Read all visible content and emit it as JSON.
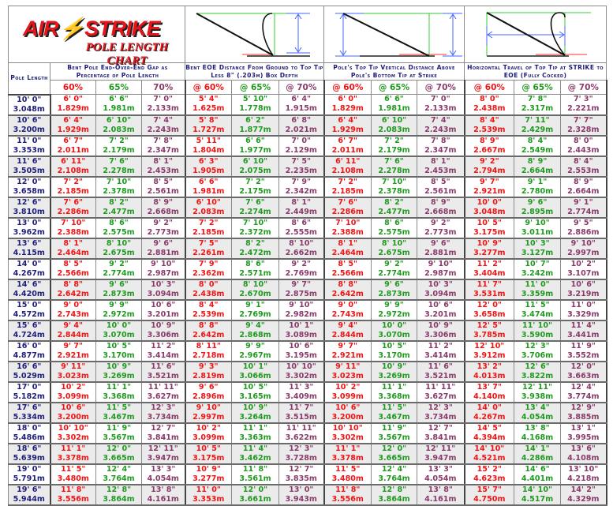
{
  "logo": {
    "brand": "AIR⚡STRIKE",
    "subtitle": "POLE LENGTH CHART"
  },
  "headers": {
    "pole_length": "Pole Length",
    "groups": [
      "Bent Pole End-Over-End Gap as Percentage of Pole Length",
      "Bent EOE Distance From Ground to Top Tip Less 8\" (.203m) Box Depth",
      "Pole's Top Tip Vertical Distance Above Pole's Bottom Tip at Strike",
      "Horizontal Travel of Top Tip at STRIKE to EOE (Fully Cocked)"
    ],
    "percentages": [
      [
        "60%",
        "65%",
        "70%"
      ],
      [
        "@ 60%",
        "@ 65%",
        "@ 70%"
      ],
      [
        "@ 60%",
        "@ 65%",
        "@ 70%"
      ],
      [
        "@ 60%",
        "@ 65%",
        "@ 70%"
      ]
    ]
  },
  "colors": {
    "pct60": "#f01414",
    "pct65": "#1f9a1f",
    "pct70": "#8a3a6a",
    "length": "#1d1d7a"
  },
  "rows": [
    {
      "length": [
        "10' 0\"",
        "3.048m"
      ],
      "cells": [
        [
          "6' 0\"",
          "1.829m"
        ],
        [
          "6' 6\"",
          "1.981m"
        ],
        [
          "7' 0\"",
          "2.133m"
        ],
        [
          "5' 4\"",
          "1.625m"
        ],
        [
          "5' 10\"",
          "1.778m"
        ],
        [
          "6' 4\"",
          "1.915m"
        ],
        [
          "6' 0\"",
          "1.829m"
        ],
        [
          "6' 6\"",
          "1.981m"
        ],
        [
          "7' 0\"",
          "2.133m"
        ],
        [
          "8' 0\"",
          "2.438m"
        ],
        [
          "7' 8\"",
          "2.317m"
        ],
        [
          "7' 3\"",
          "2.221m"
        ]
      ]
    },
    {
      "length": [
        "10' 6\"",
        "3.200m"
      ],
      "cells": [
        [
          "6' 4\"",
          "1.929m"
        ],
        [
          "6' 10\"",
          "2.083m"
        ],
        [
          "7' 4\"",
          "2.243m"
        ],
        [
          "5' 8\"",
          "1.727m"
        ],
        [
          "6' 2\"",
          "1.877m"
        ],
        [
          "6' 8\"",
          "2.021m"
        ],
        [
          "6' 4\"",
          "1.929m"
        ],
        [
          "6' 10\"",
          "2.083m"
        ],
        [
          "7' 4\"",
          "2.243m"
        ],
        [
          "8' 4\"",
          "2.539m"
        ],
        [
          "7' 11\"",
          "2.429m"
        ],
        [
          "7' 7\"",
          "2.328m"
        ]
      ]
    },
    {
      "length": [
        "11' 0\"",
        "3.353m"
      ],
      "cells": [
        [
          "6' 7\"",
          "2.011m"
        ],
        [
          "7' 2\"",
          "2.179m"
        ],
        [
          "7' 8\"",
          "2.347m"
        ],
        [
          "5' 11\"",
          "1.804m"
        ],
        [
          "6' 6\"",
          "1.977m"
        ],
        [
          "7' 0\"",
          "2.129m"
        ],
        [
          "6' 7\"",
          "2.011m"
        ],
        [
          "7' 2\"",
          "2.179m"
        ],
        [
          "7' 8\"",
          "2.347m"
        ],
        [
          "8' 9\"",
          "2.667m"
        ],
        [
          "8' 4\"",
          "2.549m"
        ],
        [
          "8' 0\"",
          "2.443m"
        ]
      ]
    },
    {
      "length": [
        "11' 6\"",
        "3.505m"
      ],
      "cells": [
        [
          "6' 11\"",
          "2.108m"
        ],
        [
          "7' 6\"",
          "2.278m"
        ],
        [
          "8' 1\"",
          "2.453m"
        ],
        [
          "6' 3\"",
          "1.905m"
        ],
        [
          "6' 10\"",
          "2.075m"
        ],
        [
          "7' 5\"",
          "2.235m"
        ],
        [
          "6' 11\"",
          "2.108m"
        ],
        [
          "7' 6\"",
          "2.278m"
        ],
        [
          "8' 1\"",
          "2.453m"
        ],
        [
          "9' 2\"",
          "2.794m"
        ],
        [
          "8' 9\"",
          "2.664m"
        ],
        [
          "8' 4\"",
          "2.553m"
        ]
      ]
    },
    {
      "length": [
        "12' 0\"",
        "3.658m"
      ],
      "cells": [
        [
          "7' 2\"",
          "2.185m"
        ],
        [
          "7' 10\"",
          "2.378m"
        ],
        [
          "8' 5\"",
          "2.561m"
        ],
        [
          "6' 6\"",
          "1.981m"
        ],
        [
          "7' 2\"",
          "2.175m"
        ],
        [
          "7' 9\"",
          "2.342m"
        ],
        [
          "7' 2\"",
          "2.185m"
        ],
        [
          "7' 10\"",
          "2.378m"
        ],
        [
          "8' 5\"",
          "2.561m"
        ],
        [
          "9' 7\"",
          "2.921m"
        ],
        [
          "9' 1\"",
          "2.780m"
        ],
        [
          "8' 9\"",
          "2.664m"
        ]
      ]
    },
    {
      "length": [
        "12' 6\"",
        "3.810m"
      ],
      "cells": [
        [
          "7' 6\"",
          "2.286m"
        ],
        [
          "8' 2\"",
          "2.477m"
        ],
        [
          "8' 9\"",
          "2.668m"
        ],
        [
          "6' 10\"",
          "2.083m"
        ],
        [
          "7' 6\"",
          "2.274m"
        ],
        [
          "8' 1\"",
          "2.449m"
        ],
        [
          "7' 6\"",
          "2.286m"
        ],
        [
          "8' 2\"",
          "2.477m"
        ],
        [
          "8' 9\"",
          "2.668m"
        ],
        [
          "10' 0\"",
          "3.048m"
        ],
        [
          "9' 6\"",
          "2.895m"
        ],
        [
          "9' 1\"",
          "2.774m"
        ]
      ]
    },
    {
      "length": [
        "13' 0\"",
        "3.962m"
      ],
      "cells": [
        [
          "7' 10\"",
          "2.388m"
        ],
        [
          "8' 6\"",
          "2.575m"
        ],
        [
          "9' 2\"",
          "2.773m"
        ],
        [
          "7' 2\"",
          "2.185m"
        ],
        [
          "7' 10\"",
          "2.372m"
        ],
        [
          "8' 6\"",
          "2.555m"
        ],
        [
          "7' 10\"",
          "2.388m"
        ],
        [
          "8' 6\"",
          "2.575m"
        ],
        [
          "9' 2\"",
          "2.773m"
        ],
        [
          "10' 5\"",
          "3.175m"
        ],
        [
          "9' 10\"",
          "3.011m"
        ],
        [
          "9' 5\"",
          "2.886m"
        ]
      ]
    },
    {
      "length": [
        "13' 6\"",
        "4.115m"
      ],
      "cells": [
        [
          "8' 1\"",
          "2.464m"
        ],
        [
          "8' 10\"",
          "2.675m"
        ],
        [
          "9' 6\"",
          "2.881m"
        ],
        [
          "7' 5\"",
          "2.261m"
        ],
        [
          "8' 2\"",
          "2.472m"
        ],
        [
          "8' 10\"",
          "2.662m"
        ],
        [
          "8' 1\"",
          "2.464m"
        ],
        [
          "8' 10\"",
          "2.675m"
        ],
        [
          "9' 6\"",
          "2.881m"
        ],
        [
          "10' 9\"",
          "3.277m"
        ],
        [
          "10' 3\"",
          "3.127m"
        ],
        [
          "9' 10\"",
          "2.997m"
        ]
      ]
    },
    {
      "length": [
        "14' 0\"",
        "4.267m"
      ],
      "cells": [
        [
          "8' 5\"",
          "2.566m"
        ],
        [
          "9' 2\"",
          "2.774m"
        ],
        [
          "9' 10\"",
          "2.987m"
        ],
        [
          "7' 9\"",
          "2.362m"
        ],
        [
          "8' 6\"",
          "2.571m"
        ],
        [
          "9' 2\"",
          "2.769m"
        ],
        [
          "8' 5\"",
          "2.566m"
        ],
        [
          "9' 2\"",
          "2.774m"
        ],
        [
          "9' 10\"",
          "2.987m"
        ],
        [
          "11' 2\"",
          "3.404m"
        ],
        [
          "10' 7\"",
          "3.242m"
        ],
        [
          "10' 2\"",
          "3.107m"
        ]
      ]
    },
    {
      "length": [
        "14' 6\"",
        "4.420m"
      ],
      "cells": [
        [
          "8' 8\"",
          "2.642m"
        ],
        [
          "9' 6\"",
          "2.873m"
        ],
        [
          "10' 3\"",
          "3.094m"
        ],
        [
          "8' 0\"",
          "2.438m"
        ],
        [
          "8' 10\"",
          "2.670m"
        ],
        [
          "9' 7\"",
          "2.875m"
        ],
        [
          "8' 8\"",
          "2.642m"
        ],
        [
          "9' 6\"",
          "2.873m"
        ],
        [
          "10' 3\"",
          "3.094m"
        ],
        [
          "11' 7\"",
          "3.531m"
        ],
        [
          "11' 0\"",
          "3.359m"
        ],
        [
          "10' 6\"",
          "3.219m"
        ]
      ]
    },
    {
      "length": [
        "15' 0\"",
        "4.572m"
      ],
      "cells": [
        [
          "9' 0\"",
          "2.743m"
        ],
        [
          "9' 9\"",
          "2.972m"
        ],
        [
          "10' 6\"",
          "3.201m"
        ],
        [
          "8' 4\"",
          "2.539m"
        ],
        [
          "9' 1\"",
          "2.769m"
        ],
        [
          "9' 10\"",
          "2.982m"
        ],
        [
          "9' 0\"",
          "2.743m"
        ],
        [
          "9' 9\"",
          "2.972m"
        ],
        [
          "10' 6\"",
          "3.201m"
        ],
        [
          "12' 0\"",
          "3.658m"
        ],
        [
          "11' 5\"",
          "3.474m"
        ],
        [
          "11' 0\"",
          "3.329m"
        ]
      ]
    },
    {
      "length": [
        "15' 6\"",
        "4.724m"
      ],
      "cells": [
        [
          "9' 4\"",
          "2.844m"
        ],
        [
          "10' 0\"",
          "3.070m"
        ],
        [
          "10' 9\"",
          "3.306m"
        ],
        [
          "8' 8\"",
          "2.642m"
        ],
        [
          "9' 4\"",
          "2.868m"
        ],
        [
          "10' 1\"",
          "3.089m"
        ],
        [
          "9' 4\"",
          "2.844m"
        ],
        [
          "10' 0\"",
          "3.070m"
        ],
        [
          "10' 9\"",
          "3.306m"
        ],
        [
          "12' 5\"",
          "3.785m"
        ],
        [
          "11' 10\"",
          "3.590m"
        ],
        [
          "11' 4\"",
          "3.441m"
        ]
      ]
    },
    {
      "length": [
        "16' 0\"",
        "4.877m"
      ],
      "cells": [
        [
          "9' 7\"",
          "2.921m"
        ],
        [
          "10' 5\"",
          "3.170m"
        ],
        [
          "11' 2\"",
          "3.414m"
        ],
        [
          "8' 11\"",
          "2.718m"
        ],
        [
          "9' 9\"",
          "2.967m"
        ],
        [
          "10' 6\"",
          "3.195m"
        ],
        [
          "9' 7\"",
          "2.921m"
        ],
        [
          "10' 5\"",
          "3.170m"
        ],
        [
          "11' 2\"",
          "3.414m"
        ],
        [
          "12' 10\"",
          "3.912m"
        ],
        [
          "12' 3\"",
          "3.706m"
        ],
        [
          "11' 9\"",
          "3.552m"
        ]
      ]
    },
    {
      "length": [
        "16' 6\"",
        "5.029m"
      ],
      "cells": [
        [
          "9' 11\"",
          "3.023m"
        ],
        [
          "10' 9\"",
          "3.269m"
        ],
        [
          "11' 6\"",
          "3.521m"
        ],
        [
          "9' 3\"",
          "2.819m"
        ],
        [
          "10' 1\"",
          "3.066m"
        ],
        [
          "10' 10\"",
          "3.302m"
        ],
        [
          "9' 11\"",
          "3.023m"
        ],
        [
          "10' 9\"",
          "3.269m"
        ],
        [
          "11' 6\"",
          "3.521m"
        ],
        [
          "13' 2\"",
          "4.013m"
        ],
        [
          "12' 6\"",
          "3.822m"
        ],
        [
          "12' 0\"",
          "3.663m"
        ]
      ]
    },
    {
      "length": [
        "17' 0\"",
        "5.182m"
      ],
      "cells": [
        [
          "10' 2\"",
          "3.099m"
        ],
        [
          "11' 1\"",
          "3.368m"
        ],
        [
          "11' 11\"",
          "3.627m"
        ],
        [
          "9' 6\"",
          "2.896m"
        ],
        [
          "10' 5\"",
          "3.165m"
        ],
        [
          "11' 3\"",
          "3.409m"
        ],
        [
          "10' 2\"",
          "3.099m"
        ],
        [
          "11' 1\"",
          "3.368m"
        ],
        [
          "11' 11\"",
          "3.627m"
        ],
        [
          "13' 7\"",
          "4.140m"
        ],
        [
          "12' 11\"",
          "3.938m"
        ],
        [
          "12' 4\"",
          "3.774m"
        ]
      ]
    },
    {
      "length": [
        "17' 6\"",
        "5.334m"
      ],
      "cells": [
        [
          "10' 6\"",
          "3.200m"
        ],
        [
          "11' 5\"",
          "3.467m"
        ],
        [
          "12' 3\"",
          "3.734m"
        ],
        [
          "9' 10\"",
          "2.997m"
        ],
        [
          "10' 9\"",
          "3.264m"
        ],
        [
          "11' 7\"",
          "3.515m"
        ],
        [
          "10' 6\"",
          "3.200m"
        ],
        [
          "11' 5\"",
          "3.467m"
        ],
        [
          "12' 3\"",
          "3.734m"
        ],
        [
          "14' 0\"",
          "4.267m"
        ],
        [
          "13' 4\"",
          "4.054m"
        ],
        [
          "12' 9\"",
          "3.885m"
        ]
      ]
    },
    {
      "length": [
        "18' 0\"",
        "5.486m"
      ],
      "cells": [
        [
          "10' 10\"",
          "3.302m"
        ],
        [
          "11' 9\"",
          "3.567m"
        ],
        [
          "12' 7\"",
          "3.841m"
        ],
        [
          "10' 2\"",
          "3.099m"
        ],
        [
          "11' 1\"",
          "3.363m"
        ],
        [
          "11' 11\"",
          "3.622m"
        ],
        [
          "10' 10\"",
          "3.302m"
        ],
        [
          "11' 9\"",
          "3.567m"
        ],
        [
          "12' 7\"",
          "3.841m"
        ],
        [
          "14' 5\"",
          "4.394m"
        ],
        [
          "13' 8\"",
          "4.168m"
        ],
        [
          "13' 1\"",
          "3.995m"
        ]
      ]
    },
    {
      "length": [
        "18' 6\"",
        "5.639m"
      ],
      "cells": [
        [
          "11' 1\"",
          "3.378m"
        ],
        [
          "12' 0\"",
          "3.665m"
        ],
        [
          "12' 11\"",
          "3.947m"
        ],
        [
          "10' 5\"",
          "3.175m"
        ],
        [
          "11' 4\"",
          "3.462m"
        ],
        [
          "12' 3\"",
          "3.728m"
        ],
        [
          "11' 1\"",
          "3.378m"
        ],
        [
          "12' 0\"",
          "3.665m"
        ],
        [
          "12' 11\"",
          "3.947m"
        ],
        [
          "14' 10\"",
          "4.521m"
        ],
        [
          "14' 1\"",
          "4.286m"
        ],
        [
          "13' 6\"",
          "4.108m"
        ]
      ]
    },
    {
      "length": [
        "19' 0\"",
        "5.791m"
      ],
      "cells": [
        [
          "11' 5\"",
          "3.480m"
        ],
        [
          "12' 4\"",
          "3.764m"
        ],
        [
          "13' 3\"",
          "4.054m"
        ],
        [
          "10' 9\"",
          "3.277m"
        ],
        [
          "11' 8\"",
          "3.561m"
        ],
        [
          "12' 7\"",
          "3.835m"
        ],
        [
          "11' 5\"",
          "3.480m"
        ],
        [
          "12' 4\"",
          "3.764m"
        ],
        [
          "13' 3\"",
          "4.054m"
        ],
        [
          "15' 2\"",
          "4.623m"
        ],
        [
          "14' 6\"",
          "4.401m"
        ],
        [
          "13' 10\"",
          "4.218m"
        ]
      ]
    },
    {
      "length": [
        "19' 6\"",
        "5.944m"
      ],
      "cells": [
        [
          "11' 8\"",
          "3.556m"
        ],
        [
          "12' 8\"",
          "3.864m"
        ],
        [
          "13' 8\"",
          "4.161m"
        ],
        [
          "11' 0\"",
          "3.353m"
        ],
        [
          "12' 0\"",
          "3.661m"
        ],
        [
          "13' 0\"",
          "3.943m"
        ],
        [
          "11' 8\"",
          "3.556m"
        ],
        [
          "12' 8\"",
          "3.864m"
        ],
        [
          "13' 8\"",
          "4.161m"
        ],
        [
          "15' 7\"",
          "4.750m"
        ],
        [
          "14' 10\"",
          "4.517m"
        ],
        [
          "14' 2\"",
          "4.329m"
        ]
      ]
    }
  ]
}
